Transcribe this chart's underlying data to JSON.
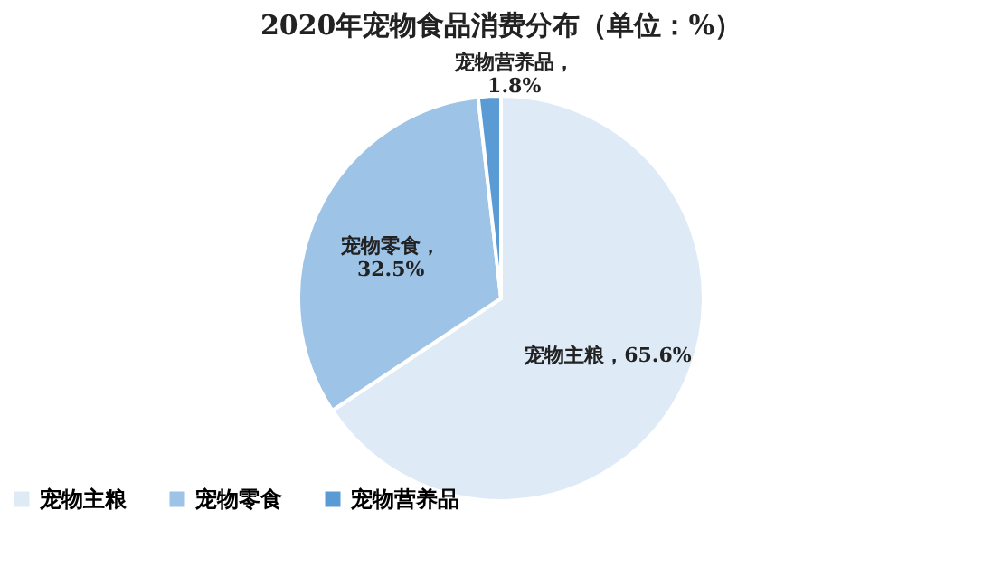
{
  "chart_data": {
    "type": "pie",
    "title": "2020年宠物食品消费分布（单位：%）",
    "categories": [
      "宠物主粮",
      "宠物零食",
      "宠物营养品"
    ],
    "values": [
      65.6,
      32.5,
      1.8
    ],
    "colors": [
      "#deebf7",
      "#9dc3e6",
      "#5b9bd5"
    ],
    "value_labels": [
      "宠物主粮，65.6%",
      "宠物零食，\n32.5%",
      "宠物营养品，\n1.8%"
    ],
    "legend": "bottom left"
  }
}
